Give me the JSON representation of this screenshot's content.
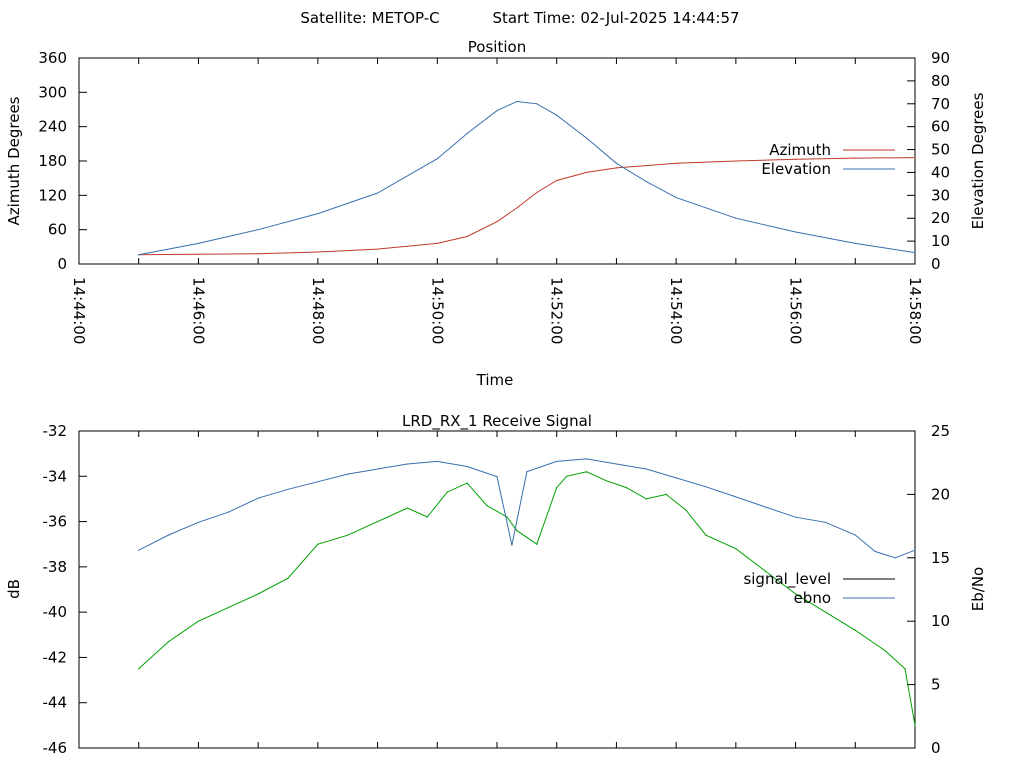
{
  "header": {
    "satellite": "Satellite: METOP-C",
    "start_time": "Start Time: 02-Jul-2025 14:44:57"
  },
  "chart_data": [
    {
      "type": "line",
      "title": "Position",
      "xlabel": "Time",
      "ylabel": "Azimuth Degrees",
      "y2label": "Elevation Degrees",
      "x_ticks": [
        "14:44:00",
        "14:46:00",
        "14:48:00",
        "14:50:00",
        "14:52:00",
        "14:54:00",
        "14:56:00",
        "14:58:00"
      ],
      "xlim": [
        "14:44:00",
        "14:58:00"
      ],
      "ylim": [
        0,
        360
      ],
      "y_ticks": [
        0,
        60,
        120,
        180,
        240,
        300,
        360
      ],
      "y2lim": [
        0,
        90
      ],
      "y2_ticks": [
        0,
        10,
        20,
        30,
        40,
        50,
        60,
        70,
        80,
        90
      ],
      "legend_position": "right",
      "grid": false,
      "series": [
        {
          "name": "Azimuth",
          "axis": "y",
          "color": "#c0392b",
          "x": [
            "14:45:00",
            "14:46:00",
            "14:47:00",
            "14:48:00",
            "14:49:00",
            "14:50:00",
            "14:50:30",
            "14:51:00",
            "14:51:20",
            "14:51:40",
            "14:52:00",
            "14:52:30",
            "14:53:00",
            "14:54:00",
            "14:55:00",
            "14:56:00",
            "14:57:00",
            "14:58:00"
          ],
          "values": [
            16,
            17,
            18,
            21,
            26,
            36,
            48,
            74,
            98,
            125,
            146,
            160,
            168,
            176,
            180,
            183,
            185,
            186
          ]
        },
        {
          "name": "Elevation",
          "axis": "y2",
          "color": "#3a6fb0",
          "x": [
            "14:45:00",
            "14:46:00",
            "14:47:00",
            "14:48:00",
            "14:49:00",
            "14:50:00",
            "14:50:30",
            "14:51:00",
            "14:51:20",
            "14:51:40",
            "14:52:00",
            "14:52:30",
            "14:53:00",
            "14:53:30",
            "14:54:00",
            "14:55:00",
            "14:56:00",
            "14:57:00",
            "14:58:00"
          ],
          "values": [
            4,
            9,
            15,
            22,
            31,
            46,
            57,
            67,
            71,
            70,
            65,
            55,
            44,
            36,
            29,
            20,
            14,
            9,
            5
          ]
        }
      ]
    },
    {
      "type": "line",
      "title": "LRD_RX_1 Receive Signal",
      "ylabel": "dB",
      "y2label": "Eb/No",
      "xlim": [
        "14:44:00",
        "14:58:00"
      ],
      "ylim": [
        -46,
        -32
      ],
      "y_ticks": [
        -46,
        -44,
        -42,
        -40,
        -38,
        -36,
        -34,
        -32
      ],
      "y2lim": [
        0,
        25
      ],
      "y2_ticks": [
        0,
        5,
        10,
        15,
        20,
        25
      ],
      "legend_position": "right",
      "grid": false,
      "series": [
        {
          "name": "signal_level",
          "axis": "y",
          "color": "#00a000",
          "legend_color": "#000000",
          "x": [
            "14:45:00",
            "14:45:30",
            "14:46:00",
            "14:46:30",
            "14:47:00",
            "14:47:30",
            "14:48:00",
            "14:48:30",
            "14:49:00",
            "14:49:30",
            "14:49:50",
            "14:50:10",
            "14:50:30",
            "14:50:50",
            "14:51:10",
            "14:51:20",
            "14:51:40",
            "14:52:00",
            "14:52:10",
            "14:52:30",
            "14:52:50",
            "14:53:10",
            "14:53:30",
            "14:53:50",
            "14:54:10",
            "14:54:30",
            "14:55:00",
            "14:55:30",
            "14:56:00",
            "14:56:30",
            "14:57:00",
            "14:57:30",
            "14:57:50",
            "14:58:00"
          ],
          "values": [
            -42.5,
            -41.3,
            -40.4,
            -39.8,
            -39.2,
            -38.5,
            -37.0,
            -36.6,
            -36.0,
            -35.4,
            -35.8,
            -34.7,
            -34.3,
            -35.3,
            -35.8,
            -36.4,
            -37.0,
            -34.5,
            -34.0,
            -33.8,
            -34.2,
            -34.5,
            -35.0,
            -34.8,
            -35.5,
            -36.6,
            -37.2,
            -38.2,
            -39.2,
            -40.0,
            -40.8,
            -41.7,
            -42.5,
            -45.0
          ]
        },
        {
          "name": "ebno",
          "axis": "y2",
          "color": "#3a6fb0",
          "x": [
            "14:45:00",
            "14:45:30",
            "14:46:00",
            "14:46:30",
            "14:47:00",
            "14:47:30",
            "14:48:00",
            "14:48:30",
            "14:49:00",
            "14:49:30",
            "14:50:00",
            "14:50:30",
            "14:51:00",
            "14:51:15",
            "14:51:30",
            "14:52:00",
            "14:52:30",
            "14:53:00",
            "14:53:30",
            "14:54:00",
            "14:54:30",
            "14:55:00",
            "14:55:30",
            "14:56:00",
            "14:56:30",
            "14:57:00",
            "14:57:20",
            "14:57:40",
            "14:58:00"
          ],
          "values": [
            15.6,
            16.8,
            17.8,
            18.6,
            19.7,
            20.4,
            21.0,
            21.6,
            22.0,
            22.4,
            22.6,
            22.2,
            21.4,
            16.0,
            21.8,
            22.6,
            22.8,
            22.4,
            22.0,
            21.3,
            20.6,
            19.8,
            19.0,
            18.2,
            17.8,
            16.8,
            15.5,
            15.0,
            15.6
          ]
        }
      ]
    }
  ]
}
